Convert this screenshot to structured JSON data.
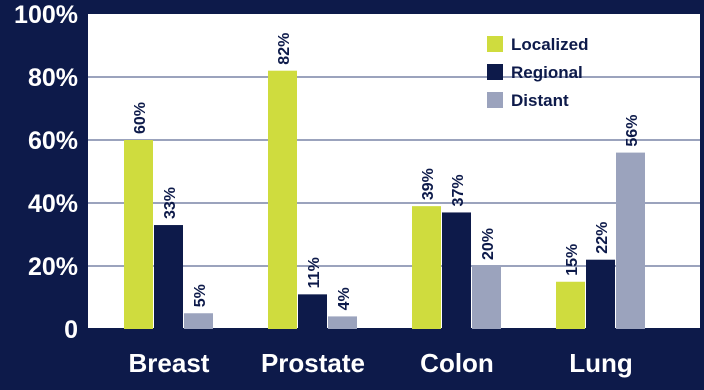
{
  "chart_data": {
    "type": "bar",
    "categories": [
      "Breast",
      "Prostate",
      "Colon",
      "Lung"
    ],
    "series": [
      {
        "name": "Localized",
        "values": [
          60,
          82,
          39,
          15
        ],
        "labels": [
          "60%",
          "82%",
          "39%",
          "15%"
        ],
        "color": "#cfdc3e"
      },
      {
        "name": "Regional",
        "values": [
          33,
          11,
          37,
          22
        ],
        "labels": [
          "33%",
          "11%",
          "37%",
          "22%"
        ],
        "color": "#0d1a4a"
      },
      {
        "name": "Distant",
        "values": [
          5,
          4,
          20,
          56
        ],
        "labels": [
          "5%",
          "4%",
          "20%",
          "56%"
        ],
        "color": "#9ba3bd"
      }
    ],
    "y_ticks": [
      {
        "value": 0,
        "label": "0"
      },
      {
        "value": 20,
        "label": "20%"
      },
      {
        "value": 40,
        "label": "40%"
      },
      {
        "value": 60,
        "label": "60%"
      },
      {
        "value": 80,
        "label": "80%"
      },
      {
        "value": 100,
        "label": "100%"
      }
    ],
    "ylim": [
      0,
      100
    ],
    "grid": true,
    "legend_position": "top-right",
    "plot_background": "#ffffff",
    "frame_background": "#0d1a4a",
    "grid_color": "#9ba3bd"
  }
}
